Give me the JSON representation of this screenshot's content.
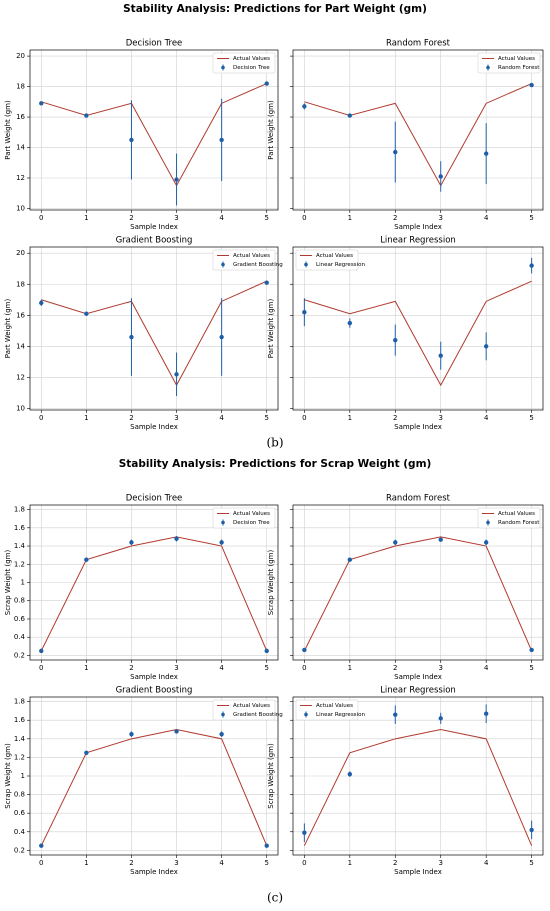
{
  "figures": [
    {
      "title": "Stability Analysis: Predictions for Part Weight (gm)",
      "caption": "(b)"
    },
    {
      "title": "Stability Analysis: Predictions for Scrap Weight (gm)",
      "caption": "(c)"
    }
  ],
  "chart_data": [
    {
      "type": "line",
      "title": "Decision Tree",
      "xlabel": "Sample Index",
      "ylabel": "Part Weight (gm)",
      "x": [
        0,
        1,
        2,
        3,
        4,
        5
      ],
      "xlim": [
        -0.25,
        5.25
      ],
      "xticks": [
        0,
        1,
        2,
        3,
        4,
        5
      ],
      "ylim": [
        9.9,
        20.4
      ],
      "yticks": [
        10,
        12,
        14,
        16,
        18,
        20
      ],
      "show_ytick_labels": true,
      "grid": true,
      "legend": "upper right",
      "series": [
        {
          "name": "Actual Values",
          "color": "#b03a2e",
          "values": [
            17,
            16.1,
            16.9,
            11.5,
            16.9,
            18.2
          ]
        },
        {
          "name": "Decision Tree",
          "color": "#1f5fa8",
          "values": [
            16.9,
            16.1,
            14.5,
            11.9,
            14.5,
            18.2
          ],
          "errors": [
            0.1,
            0.05,
            2.6,
            1.7,
            2.7,
            0.05
          ]
        }
      ]
    },
    {
      "type": "line",
      "title": "Random Forest",
      "xlabel": "Sample Index",
      "ylabel": "Part Weight (gm)",
      "x": [
        0,
        1,
        2,
        3,
        4,
        5
      ],
      "xlim": [
        -0.25,
        5.25
      ],
      "xticks": [
        0,
        1,
        2,
        3,
        4,
        5
      ],
      "ylim": [
        9.9,
        20.4
      ],
      "yticks": [
        10,
        12,
        14,
        16,
        18,
        20
      ],
      "show_ytick_labels": false,
      "grid": true,
      "legend": "upper right",
      "series": [
        {
          "name": "Actual Values",
          "color": "#b03a2e",
          "values": [
            17,
            16.1,
            16.9,
            11.5,
            16.9,
            18.2
          ]
        },
        {
          "name": "Random Forest",
          "color": "#1f5fa8",
          "values": [
            16.7,
            16.1,
            13.7,
            12.1,
            13.6,
            18.1
          ],
          "errors": [
            0.2,
            0.1,
            2.0,
            1.0,
            2.0,
            0.1
          ]
        }
      ]
    },
    {
      "type": "line",
      "title": "Gradient Boosting",
      "xlabel": "Sample Index",
      "ylabel": "Part Weight (gm)",
      "x": [
        0,
        1,
        2,
        3,
        4,
        5
      ],
      "xlim": [
        -0.25,
        5.25
      ],
      "xticks": [
        0,
        1,
        2,
        3,
        4,
        5
      ],
      "ylim": [
        9.9,
        20.4
      ],
      "yticks": [
        10,
        12,
        14,
        16,
        18,
        20
      ],
      "show_ytick_labels": true,
      "grid": true,
      "legend": "upper right",
      "series": [
        {
          "name": "Actual Values",
          "color": "#b03a2e",
          "values": [
            17,
            16.1,
            16.9,
            11.5,
            16.9,
            18.2
          ]
        },
        {
          "name": "Gradient Boosting",
          "color": "#1f5fa8",
          "values": [
            16.8,
            16.1,
            14.6,
            12.2,
            14.6,
            18.1
          ],
          "errors": [
            0.2,
            0.1,
            2.5,
            1.4,
            2.5,
            0.1
          ]
        }
      ]
    },
    {
      "type": "line",
      "title": "Linear Regression",
      "xlabel": "Sample Index",
      "ylabel": "Part Weight (gm)",
      "x": [
        0,
        1,
        2,
        3,
        4,
        5
      ],
      "xlim": [
        -0.25,
        5.25
      ],
      "xticks": [
        0,
        1,
        2,
        3,
        4,
        5
      ],
      "ylim": [
        9.9,
        20.4
      ],
      "yticks": [
        10,
        12,
        14,
        16,
        18,
        20
      ],
      "show_ytick_labels": false,
      "grid": true,
      "legend": "upper left",
      "series": [
        {
          "name": "Actual Values",
          "color": "#b03a2e",
          "values": [
            17,
            16.1,
            16.9,
            11.5,
            16.9,
            18.2
          ]
        },
        {
          "name": "Linear Regression",
          "color": "#1f5fa8",
          "values": [
            16.2,
            15.5,
            14.4,
            13.4,
            14.0,
            19.2
          ],
          "errors": [
            0.9,
            0.3,
            1.0,
            0.9,
            0.9,
            0.5
          ]
        }
      ]
    },
    {
      "type": "line",
      "title": "Decision Tree",
      "xlabel": "Sample Index",
      "ylabel": "Scrap Weight (gm)",
      "x": [
        0,
        1,
        2,
        3,
        4,
        5
      ],
      "xlim": [
        -0.25,
        5.25
      ],
      "xticks": [
        0,
        1,
        2,
        3,
        4,
        5
      ],
      "ylim": [
        0.15,
        1.85
      ],
      "yticks": [
        0.2,
        0.4,
        0.6,
        0.8,
        1.0,
        1.2,
        1.4,
        1.6,
        1.8
      ],
      "show_ytick_labels": true,
      "grid": true,
      "legend": "upper right",
      "series": [
        {
          "name": "Actual Values",
          "color": "#b03a2e",
          "values": [
            0.25,
            1.25,
            1.4,
            1.5,
            1.4,
            0.25
          ]
        },
        {
          "name": "Decision Tree",
          "color": "#1f5fa8",
          "values": [
            0.25,
            1.25,
            1.44,
            1.48,
            1.44,
            0.25
          ],
          "errors": [
            0.01,
            0.01,
            0.03,
            0.03,
            0.03,
            0.01
          ]
        }
      ]
    },
    {
      "type": "line",
      "title": "Random Forest",
      "xlabel": "Sample Index",
      "ylabel": "Scrap Weight (gm)",
      "x": [
        0,
        1,
        2,
        3,
        4,
        5
      ],
      "xlim": [
        -0.25,
        5.25
      ],
      "xticks": [
        0,
        1,
        2,
        3,
        4,
        5
      ],
      "ylim": [
        0.15,
        1.85
      ],
      "yticks": [
        0.2,
        0.4,
        0.6,
        0.8,
        1.0,
        1.2,
        1.4,
        1.6,
        1.8
      ],
      "show_ytick_labels": false,
      "grid": true,
      "legend": "upper right",
      "series": [
        {
          "name": "Actual Values",
          "color": "#b03a2e",
          "values": [
            0.25,
            1.25,
            1.4,
            1.5,
            1.4,
            0.25
          ]
        },
        {
          "name": "Random Forest",
          "color": "#1f5fa8",
          "values": [
            0.26,
            1.25,
            1.44,
            1.47,
            1.44,
            0.26
          ],
          "errors": [
            0.02,
            0.01,
            0.03,
            0.02,
            0.03,
            0.02
          ]
        }
      ]
    },
    {
      "type": "line",
      "title": "Gradient Boosting",
      "xlabel": "Sample Index",
      "ylabel": "Scrap Weight (gm)",
      "x": [
        0,
        1,
        2,
        3,
        4,
        5
      ],
      "xlim": [
        -0.25,
        5.25
      ],
      "xticks": [
        0,
        1,
        2,
        3,
        4,
        5
      ],
      "ylim": [
        0.15,
        1.85
      ],
      "yticks": [
        0.2,
        0.4,
        0.6,
        0.8,
        1.0,
        1.2,
        1.4,
        1.6,
        1.8
      ],
      "show_ytick_labels": true,
      "grid": true,
      "legend": "upper right",
      "series": [
        {
          "name": "Actual Values",
          "color": "#b03a2e",
          "values": [
            0.25,
            1.25,
            1.4,
            1.5,
            1.4,
            0.25
          ]
        },
        {
          "name": "Gradient Boosting",
          "color": "#1f5fa8",
          "values": [
            0.25,
            1.25,
            1.45,
            1.48,
            1.45,
            0.25
          ],
          "errors": [
            0.01,
            0.01,
            0.03,
            0.02,
            0.03,
            0.01
          ]
        }
      ]
    },
    {
      "type": "line",
      "title": "Linear Regression",
      "xlabel": "Sample Index",
      "ylabel": "Scrap Weight (gm)",
      "x": [
        0,
        1,
        2,
        3,
        4,
        5
      ],
      "xlim": [
        -0.25,
        5.25
      ],
      "xticks": [
        0,
        1,
        2,
        3,
        4,
        5
      ],
      "ylim": [
        0.15,
        1.85
      ],
      "yticks": [
        0.2,
        0.4,
        0.6,
        0.8,
        1.0,
        1.2,
        1.4,
        1.6,
        1.8
      ],
      "show_ytick_labels": false,
      "grid": true,
      "legend": "upper left",
      "series": [
        {
          "name": "Actual Values",
          "color": "#b03a2e",
          "values": [
            0.25,
            1.25,
            1.4,
            1.5,
            1.4,
            0.25
          ]
        },
        {
          "name": "Linear Regression",
          "color": "#1f5fa8",
          "values": [
            0.39,
            1.02,
            1.66,
            1.62,
            1.67,
            0.42
          ],
          "errors": [
            0.1,
            0.03,
            0.1,
            0.06,
            0.1,
            0.1
          ]
        }
      ]
    }
  ]
}
